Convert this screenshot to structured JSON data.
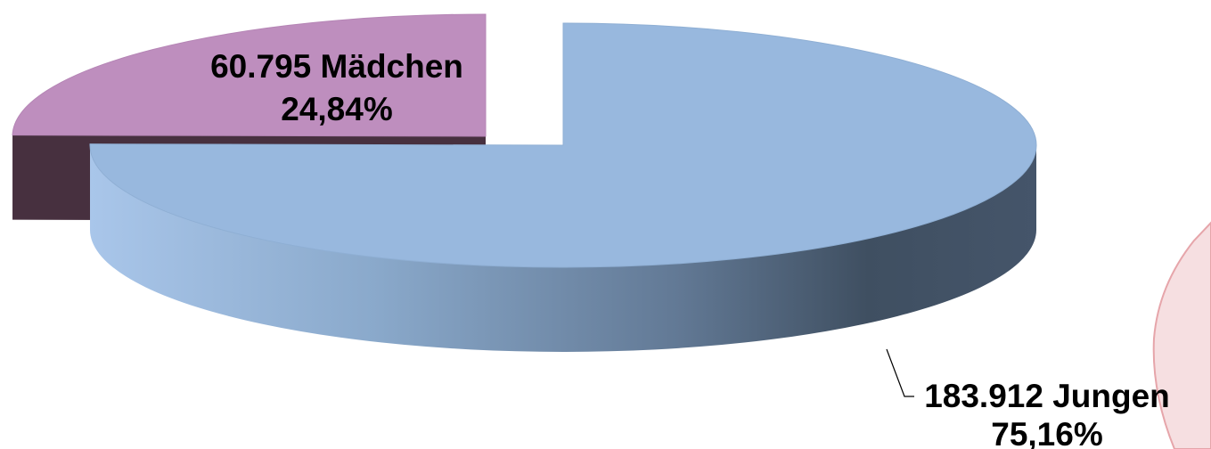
{
  "chart_data": {
    "type": "pie",
    "style": "3d-exploded",
    "title": "",
    "slices": [
      {
        "category": "Jungen",
        "value": 183912,
        "percent": 75.16,
        "label_line1": "183.912 Jungen",
        "label_line2": "75,16%",
        "top_color": "#98b8de",
        "side_color_light": "#a9c6ea",
        "side_color_dark": "#3f4f61"
      },
      {
        "category": "Mädchen",
        "value": 60795,
        "percent": 24.84,
        "label_line1": "60.795 Mädchen",
        "label_line2": "24,84%",
        "top_color": "#be8ebe",
        "side_color_light": "#573a52",
        "side_color_dark": "#47303f"
      }
    ]
  }
}
